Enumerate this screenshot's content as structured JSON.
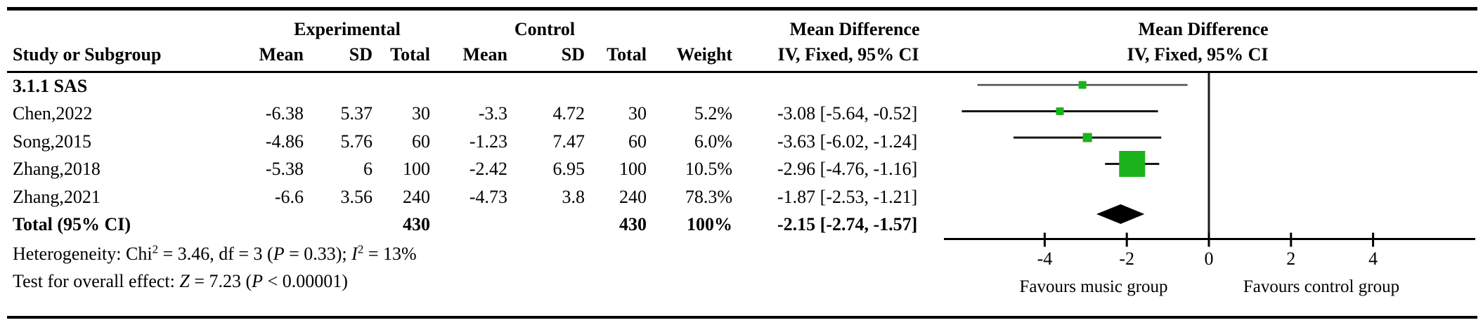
{
  "figure": {
    "header": {
      "study_col": "Study or Subgroup",
      "experimental": "Experimental",
      "control": "Control",
      "subcols": [
        "Mean",
        "SD",
        "Total",
        "Mean",
        "SD",
        "Total",
        "Weight"
      ],
      "md_text_title": "Mean Difference",
      "md_text_subtitle": "IV, Fixed, 95% CI",
      "md_plot_title": "Mean Difference",
      "md_plot_subtitle": "IV, Fixed, 95% CI"
    },
    "footer": {
      "het_1": "Heterogeneity: Chi",
      "het_sup1": "2",
      "het_2": " = 3.46, df = 3 (",
      "het_P": "P",
      "het_3": " = 0.33); ",
      "het_I": "I",
      "het_sup2": "2",
      "het_4": " = 13%",
      "eff_1": "Test for overall effect: ",
      "eff_Z": "Z",
      "eff_2": " = 7.23 (",
      "eff_P": "P",
      "eff_3": " < 0.00001)"
    }
  },
  "chart_data": {
    "type": "scatter",
    "variant": "forest-plot-meta-analysis",
    "effect_measure": "Mean Difference IV, Fixed, 95% CI",
    "subgroup_label": "3.1.1 SAS",
    "studies": [
      {
        "label": "Chen,2022",
        "cells": [
          "-6.38",
          "5.37",
          "30",
          "-3.3",
          "4.72",
          "30",
          "5.2%",
          "-3.08 [-5.64, -0.52]"
        ],
        "md": -3.08,
        "ci_low": -5.64,
        "ci_high": -0.52,
        "weight_pct": 5.2
      },
      {
        "label": "Song,2015",
        "cells": [
          "-4.86",
          "5.76",
          "60",
          "-1.23",
          "7.47",
          "60",
          "6.0%",
          "-3.63 [-6.02, -1.24]"
        ],
        "md": -3.63,
        "ci_low": -6.02,
        "ci_high": -1.24,
        "weight_pct": 6.0
      },
      {
        "label": "Zhang,2018",
        "cells": [
          "-5.38",
          "6",
          "100",
          "-2.42",
          "6.95",
          "100",
          "10.5%",
          "-2.96 [-4.76, -1.16]"
        ],
        "md": -2.96,
        "ci_low": -4.76,
        "ci_high": -1.16,
        "weight_pct": 10.5
      },
      {
        "label": "Zhang,2021",
        "cells": [
          "-6.6",
          "3.56",
          "240",
          "-4.73",
          "3.8",
          "240",
          "78.3%",
          "-1.87 [-2.53, -1.21]"
        ],
        "md": -1.87,
        "ci_low": -2.53,
        "ci_high": -1.21,
        "weight_pct": 78.3
      }
    ],
    "total": {
      "label": "Total (95% CI)",
      "cells": [
        "",
        "",
        "430",
        "",
        "",
        "430",
        "100%",
        "-2.15 [-2.74, -1.57]"
      ],
      "md": -2.15,
      "ci_low": -2.74,
      "ci_high": -1.57,
      "weight_pct": 100
    },
    "axis": {
      "ticks": [
        -4,
        -2,
        0,
        2,
        4
      ],
      "xlim": [
        -6.5,
        6.5
      ],
      "favours_left": "Favours music group",
      "favours_right": "Favours control group"
    },
    "marker_color": "#1CB21C",
    "diamond_color": "#000000",
    "grid": false,
    "legend": false
  }
}
